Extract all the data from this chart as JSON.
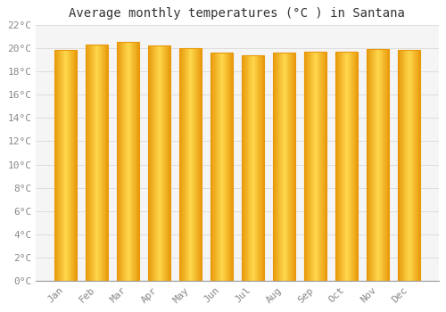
{
  "title": "Average monthly temperatures (°C ) in Santana",
  "months": [
    "Jan",
    "Feb",
    "Mar",
    "Apr",
    "May",
    "Jun",
    "Jul",
    "Aug",
    "Sep",
    "Oct",
    "Nov",
    "Dec"
  ],
  "temperatures": [
    19.8,
    20.3,
    20.5,
    20.2,
    20.0,
    19.6,
    19.4,
    19.6,
    19.7,
    19.7,
    19.9,
    19.8
  ],
  "bar_color_edge": "#E8980A",
  "bar_color_center": "#FFD84D",
  "bar_color_bottom": "#F0A500",
  "background_color": "#FFFFFF",
  "plot_bg_color": "#F5F5F5",
  "grid_color": "#DDDDDD",
  "ylim": [
    0,
    22
  ],
  "yticks": [
    0,
    2,
    4,
    6,
    8,
    10,
    12,
    14,
    16,
    18,
    20,
    22
  ],
  "title_fontsize": 10,
  "tick_fontsize": 8,
  "tick_color": "#888888",
  "font_family": "monospace",
  "bar_width": 0.72
}
